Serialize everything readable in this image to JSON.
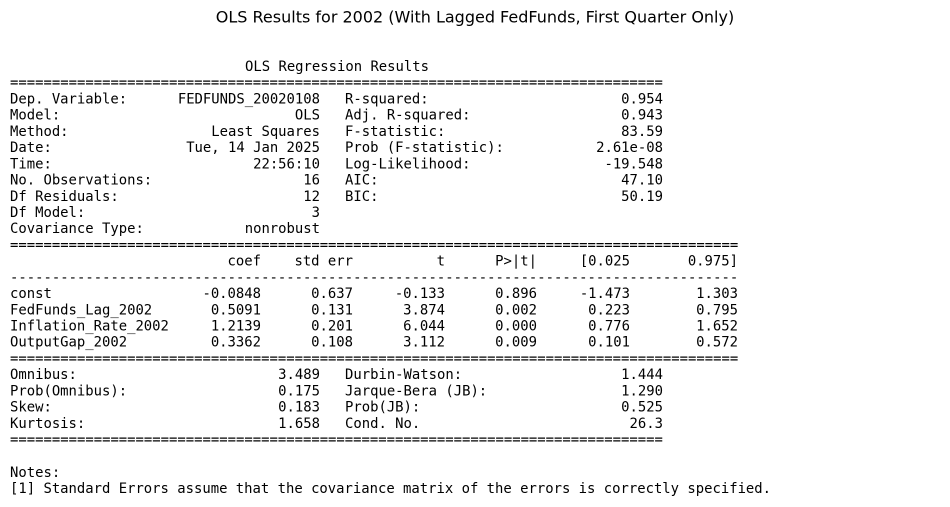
{
  "title": "OLS Results for 2002 (With Lagged FedFunds, First Quarter Only)",
  "summary": {
    "heading": "OLS Regression Results",
    "separator_double_short": "==============================================================================",
    "separator_double_long": "=======================================================================================",
    "separator_dash_long": "---------------------------------------------------------------------------------------",
    "top_left": [
      [
        "Dep. Variable:",
        "FEDFUNDS_20020108"
      ],
      [
        "Model:",
        "OLS"
      ],
      [
        "Method:",
        "Least Squares"
      ],
      [
        "Date:",
        "Tue, 14 Jan 2025"
      ],
      [
        "Time:",
        "22:56:10"
      ],
      [
        "No. Observations:",
        "16"
      ],
      [
        "Df Residuals:",
        "12"
      ],
      [
        "Df Model:",
        "3"
      ],
      [
        "Covariance Type:",
        "nonrobust"
      ]
    ],
    "top_right": [
      [
        "R-squared:",
        "0.954"
      ],
      [
        "Adj. R-squared:",
        "0.943"
      ],
      [
        "F-statistic:",
        "83.59"
      ],
      [
        "Prob (F-statistic):",
        "2.61e-08"
      ],
      [
        "Log-Likelihood:",
        "-19.548"
      ],
      [
        "AIC:",
        "47.10"
      ],
      [
        "BIC:",
        "50.19"
      ]
    ],
    "coef_header": [
      "coef",
      "std err",
      "t",
      "P>|t|",
      "[0.025",
      "0.975]"
    ],
    "coef_rows": [
      [
        "const",
        "-0.0848",
        "0.637",
        "-0.133",
        "0.896",
        "-1.473",
        "1.303"
      ],
      [
        "FedFunds_Lag_2002",
        "0.5091",
        "0.131",
        "3.874",
        "0.002",
        "0.223",
        "0.795"
      ],
      [
        "Inflation_Rate_2002",
        "1.2139",
        "0.201",
        "6.044",
        "0.000",
        "0.776",
        "1.652"
      ],
      [
        "OutputGap_2002",
        "0.3362",
        "0.108",
        "3.112",
        "0.009",
        "0.101",
        "0.572"
      ]
    ],
    "diag_left": [
      [
        "Omnibus:",
        "3.489"
      ],
      [
        "Prob(Omnibus):",
        "0.175"
      ],
      [
        "Skew:",
        "0.183"
      ],
      [
        "Kurtosis:",
        "1.658"
      ]
    ],
    "diag_right": [
      [
        "Durbin-Watson:",
        "1.444"
      ],
      [
        "Jarque-Bera (JB):",
        "1.290"
      ],
      [
        "Prob(JB):",
        "0.525"
      ],
      [
        "Cond. No.",
        "26.3"
      ]
    ]
  },
  "notes": {
    "heading": "Notes:",
    "items": [
      "[1] Standard Errors assume that the covariance matrix of the errors is correctly specified."
    ]
  }
}
